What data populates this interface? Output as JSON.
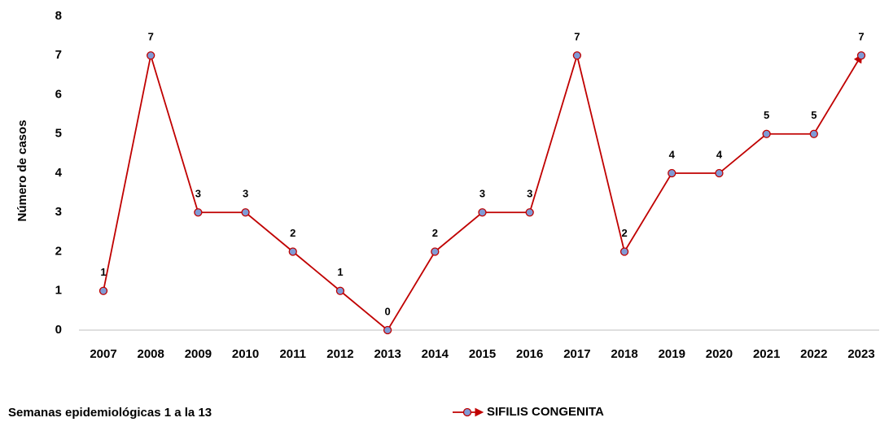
{
  "chart_data": {
    "type": "line",
    "ylabel": "Número de casos",
    "note": "Semanas epidemiológicas 1 a la 13",
    "categories": [
      "2007",
      "2008",
      "2009",
      "2010",
      "2011",
      "2012",
      "2013",
      "2014",
      "2015",
      "2016",
      "2017",
      "2018",
      "2019",
      "2020",
      "2021",
      "2022",
      "2023"
    ],
    "series": [
      {
        "name": "SIFILIS CONGENITA",
        "color": "#c00000",
        "marker_color": "#7f9bd6",
        "values": [
          1,
          7,
          3,
          3,
          2,
          1,
          0,
          2,
          3,
          3,
          7,
          2,
          4,
          4,
          5,
          5,
          7
        ]
      }
    ],
    "ylim": [
      0,
      8
    ],
    "yticks": [
      0,
      1,
      2,
      3,
      4,
      5,
      6,
      7,
      8
    ],
    "legend": "bottom",
    "grid": false
  }
}
